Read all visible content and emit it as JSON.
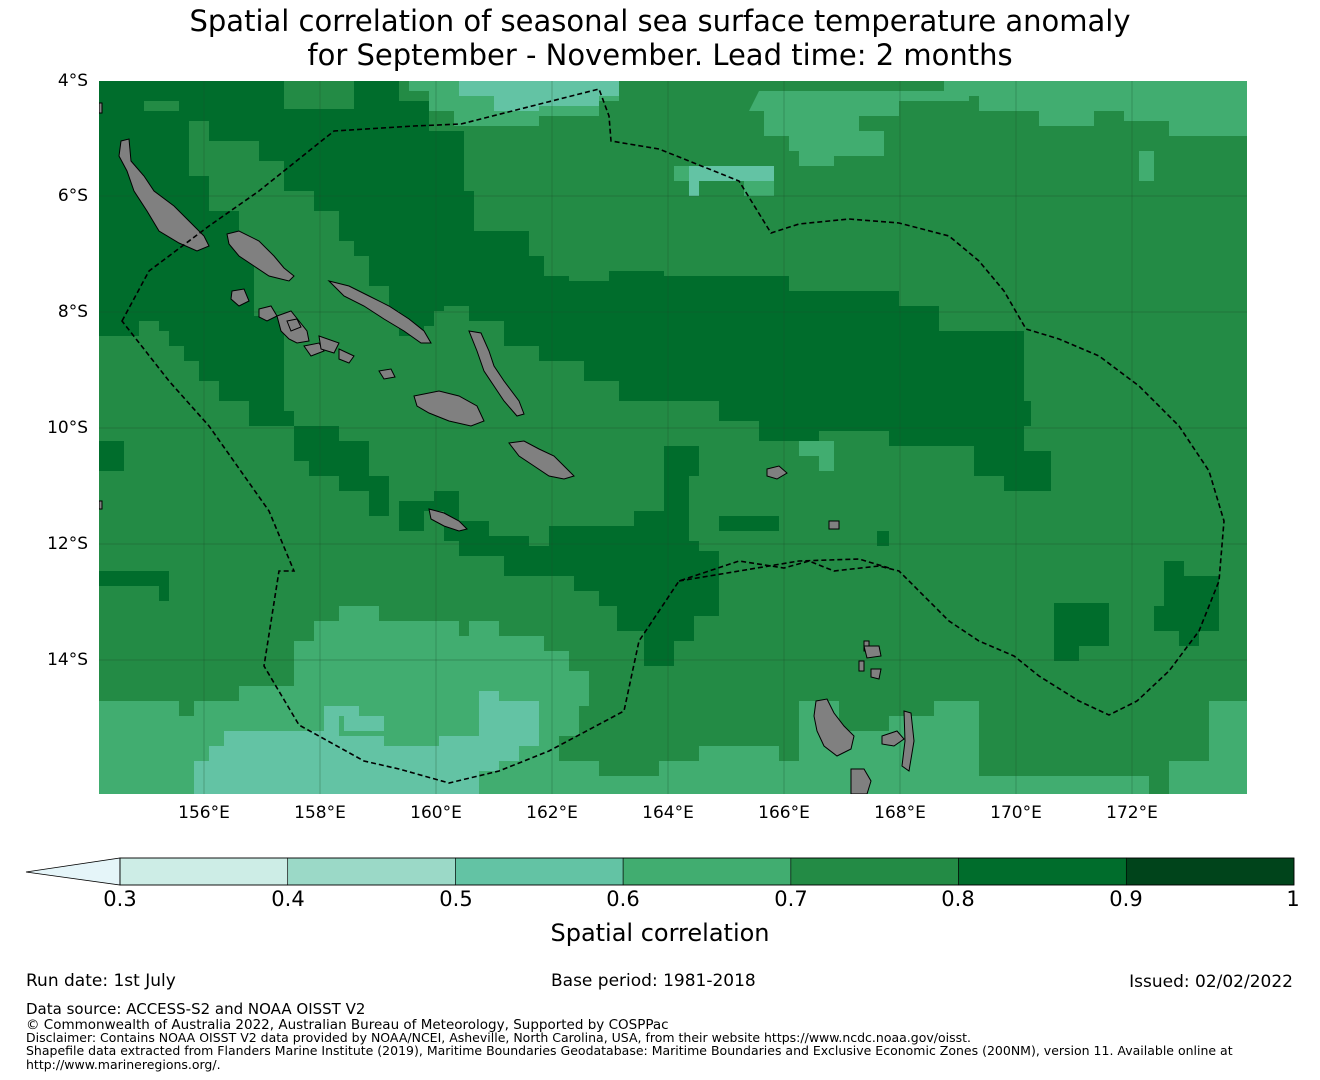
{
  "title": {
    "line1": "Spatial correlation of seasonal sea surface temperature anomaly",
    "line2": "for September - November. Lead time: 2 months"
  },
  "map": {
    "extent": {
      "lon_min": 154.2,
      "lon_max": 174.0,
      "lat_min": -16.3,
      "lat_max": -4.0
    },
    "lat_ticks": [
      "4°S",
      "6°S",
      "8°S",
      "10°S",
      "12°S",
      "14°S"
    ],
    "lat_values": [
      -4,
      -6,
      -8,
      -10,
      -12,
      -14
    ],
    "lon_ticks": [
      "156°E",
      "158°E",
      "160°E",
      "162°E",
      "164°E",
      "166°E",
      "168°E",
      "170°E",
      "172°E"
    ],
    "lon_values": [
      156,
      158,
      160,
      162,
      164,
      166,
      168,
      170,
      172
    ],
    "land_color": "#808080",
    "boundary_style": "dashed black (EEZ 200NM)",
    "islands": [
      "Bougainville",
      "Choiseul",
      "Santa Isabel",
      "New Georgia",
      "Guadalcanal",
      "Malaita",
      "Makira",
      "Santa Cruz Islands",
      "Vanuatu"
    ]
  },
  "colorbar": {
    "label": "Spatial correlation",
    "ticks": [
      "0.3",
      "0.4",
      "0.5",
      "0.6",
      "0.7",
      "0.8",
      "0.9",
      "1"
    ],
    "bounds": [
      0.3,
      0.4,
      0.5,
      0.6,
      0.7,
      0.8,
      0.9,
      1.0
    ],
    "colors": [
      "#cdede6",
      "#9bd9c7",
      "#63c3a4",
      "#41ad70",
      "#238b45",
      "#006d2c",
      "#00441b"
    ],
    "under_color": "#e5f5f9",
    "extend": "min"
  },
  "footer": {
    "run_date": "Run date: 1st July",
    "base_period": "Base period: 1981-2018",
    "issued": "Issued: 02/02/2022",
    "data_source": "Data source: ACCESS-S2 and NOAA OISST V2",
    "copyright": "© Commonwealth of Australia 2022, Australian Bureau of Meteorology, Supported by COSPPac",
    "disclaimer": "Disclaimer: Contains NOAA OISST V2 data provided by NOAA/NCEI, Asheville, North Carolina, USA, from their website https://www.ncdc.noaa.gov/oisst.",
    "shapefile_1": "Shapefile data extracted from Flanders Marine Institute (2019), Maritime Boundaries Geodatabase: Maritime Boundaries and Exclusive Economic Zones (200NM), version 11. Available online at",
    "shapefile_2": "http://www.marineregions.org/."
  }
}
